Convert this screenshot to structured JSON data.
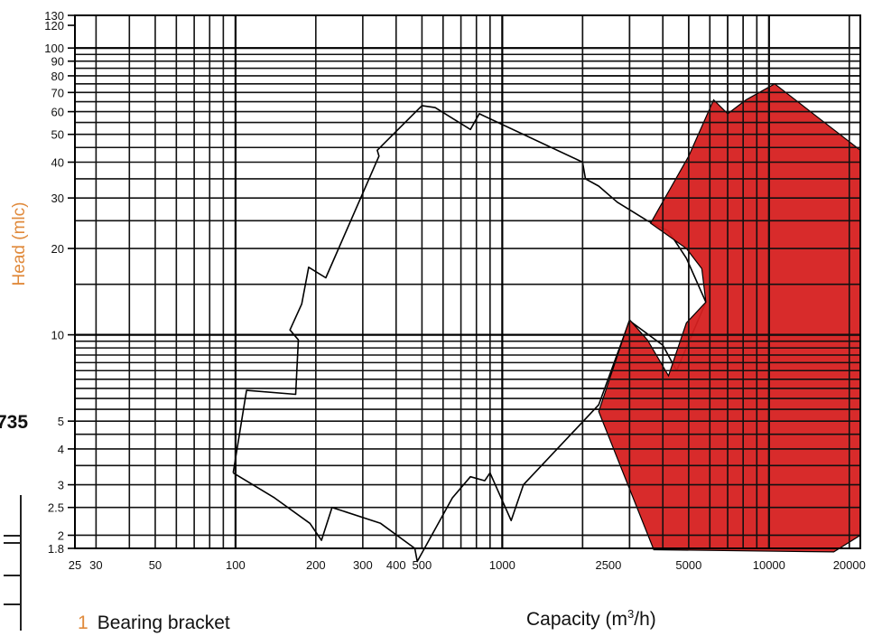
{
  "chart_data": {
    "type": "area",
    "xscale": "log",
    "yscale": "log",
    "xlabel_prefix": "Capacity (m",
    "xlabel_sup": "3",
    "xlabel_suffix": "/h)",
    "ylabel": "Head (mlc)",
    "xlim": [
      25,
      22000
    ],
    "ylim": [
      1.8,
      130
    ],
    "x_ticks": [
      {
        "value": 25,
        "label": "25"
      },
      {
        "value": 30,
        "label": "30"
      },
      {
        "value": 50,
        "label": "50"
      },
      {
        "value": 100,
        "label": "100"
      },
      {
        "value": 200,
        "label": "200"
      },
      {
        "value": 300,
        "label": "300"
      },
      {
        "value": 400,
        "label": "400"
      },
      {
        "value": 500,
        "label": "500"
      },
      {
        "value": 1000,
        "label": "1000"
      },
      {
        "value": 2500,
        "label": "2500"
      },
      {
        "value": 5000,
        "label": "5000"
      },
      {
        "value": 10000,
        "label": "10000"
      },
      {
        "value": 20000,
        "label": "20000"
      }
    ],
    "y_ticks": [
      {
        "value": 1.8,
        "label": "1.8"
      },
      {
        "value": 2,
        "label": "2"
      },
      {
        "value": 2.5,
        "label": "2.5"
      },
      {
        "value": 3,
        "label": "3"
      },
      {
        "value": 4,
        "label": "4"
      },
      {
        "value": 5,
        "label": "5"
      },
      {
        "value": 10,
        "label": "10"
      },
      {
        "value": 20,
        "label": "20"
      },
      {
        "value": 30,
        "label": "30"
      },
      {
        "value": 40,
        "label": "40"
      },
      {
        "value": 50,
        "label": "50"
      },
      {
        "value": 60,
        "label": "60"
      },
      {
        "value": 70,
        "label": "70"
      },
      {
        "value": 80,
        "label": "80"
      },
      {
        "value": 90,
        "label": "90"
      },
      {
        "value": 100,
        "label": "100"
      },
      {
        "value": 120,
        "label": "120"
      },
      {
        "value": 130,
        "label": "130"
      }
    ],
    "grid": true,
    "series": [
      {
        "kind": "outline",
        "stroke": "#000000",
        "points": [
          [
            98,
            3.3
          ],
          [
            110,
            6.4
          ],
          [
            168,
            6.2
          ],
          [
            172,
            9.6
          ],
          [
            160,
            10.4
          ],
          [
            177,
            12.8
          ],
          [
            188,
            17.2
          ],
          [
            218,
            15.8
          ],
          [
            345,
            42
          ],
          [
            340,
            44
          ],
          [
            500,
            63
          ],
          [
            560,
            62
          ],
          [
            760,
            52
          ],
          [
            820,
            59
          ],
          [
            2000,
            40
          ],
          [
            2050,
            35
          ],
          [
            2300,
            33
          ],
          [
            2700,
            29
          ],
          [
            3500,
            25
          ],
          [
            4200,
            23
          ],
          [
            4900,
            18.5
          ],
          [
            5800,
            13
          ],
          [
            4500,
            7.5
          ],
          [
            4000,
            9.2
          ],
          [
            3000,
            11.2
          ],
          [
            2300,
            5.7
          ],
          [
            1200,
            3.0
          ],
          [
            1080,
            2.25
          ],
          [
            900,
            3.3
          ],
          [
            860,
            3.1
          ],
          [
            760,
            3.2
          ],
          [
            650,
            2.7
          ],
          [
            480,
            1.62
          ],
          [
            470,
            1.8
          ],
          [
            350,
            2.2
          ],
          [
            230,
            2.5
          ],
          [
            210,
            1.92
          ],
          [
            190,
            2.2
          ],
          [
            140,
            2.7
          ],
          [
            98,
            3.3
          ]
        ]
      },
      {
        "kind": "filled",
        "fill": "#d62020",
        "stroke": "#000000",
        "points": [
          [
            3600,
            24.5
          ],
          [
            5000,
            42
          ],
          [
            6200,
            66
          ],
          [
            7000,
            59
          ],
          [
            8200,
            66
          ],
          [
            10500,
            75
          ],
          [
            15000,
            58
          ],
          [
            22000,
            44
          ],
          [
            22000,
            2.0
          ],
          [
            17500,
            1.75
          ],
          [
            3700,
            1.78
          ],
          [
            2300,
            5.4
          ],
          [
            3000,
            11.3
          ],
          [
            3500,
            9.6
          ],
          [
            4200,
            7.2
          ],
          [
            4900,
            11
          ],
          [
            5800,
            13
          ],
          [
            5600,
            17
          ],
          [
            4900,
            20
          ],
          [
            3600,
            24.5
          ]
        ]
      }
    ]
  },
  "side": {
    "fragment_label": "735"
  },
  "legend": {
    "number": "1",
    "label": "Bearing bracket"
  }
}
